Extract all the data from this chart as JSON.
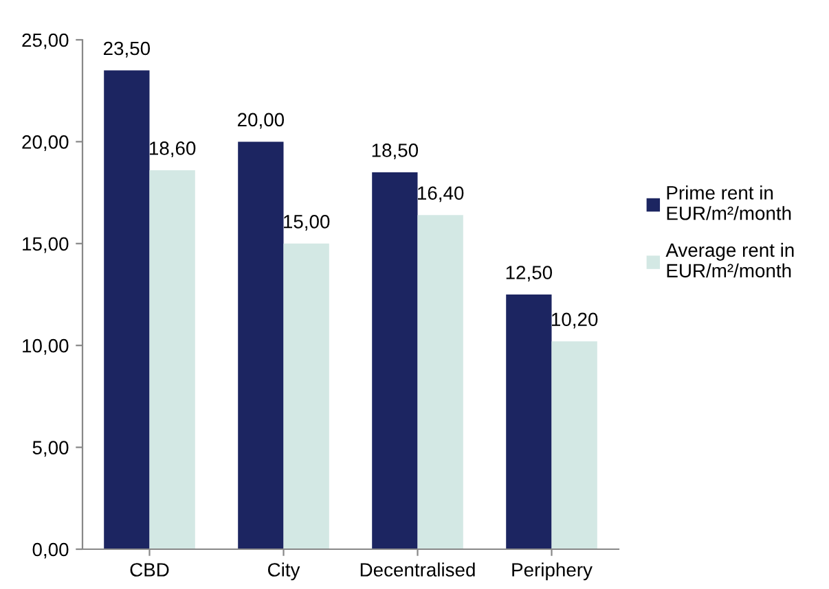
{
  "chart_data": {
    "type": "bar",
    "categories": [
      "CBD",
      "City",
      "Decentralised",
      "Periphery"
    ],
    "series": [
      {
        "name": "Prime rent in EUR/m²/month",
        "color": "#1c2561",
        "values": [
          23.5,
          20.0,
          18.5,
          12.5
        ],
        "value_labels": [
          "23,50",
          "20,00",
          "18,50",
          "12,50"
        ]
      },
      {
        "name": "Average rent in EUR/m²/month",
        "color": "#d3e8e4",
        "values": [
          18.6,
          15.0,
          16.4,
          10.2
        ],
        "value_labels": [
          "18,60",
          "15,00",
          "16,40",
          "10,20"
        ]
      }
    ],
    "ylim": [
      0,
      25
    ],
    "yticks": [
      {
        "value": 0,
        "label": "0,00"
      },
      {
        "value": 5,
        "label": "5,00"
      },
      {
        "value": 10,
        "label": "10,00"
      },
      {
        "value": 15,
        "label": "15,00"
      },
      {
        "value": 20,
        "label": "20,00"
      },
      {
        "value": 25,
        "label": "25,00"
      }
    ],
    "grid": false,
    "legend": "right"
  }
}
